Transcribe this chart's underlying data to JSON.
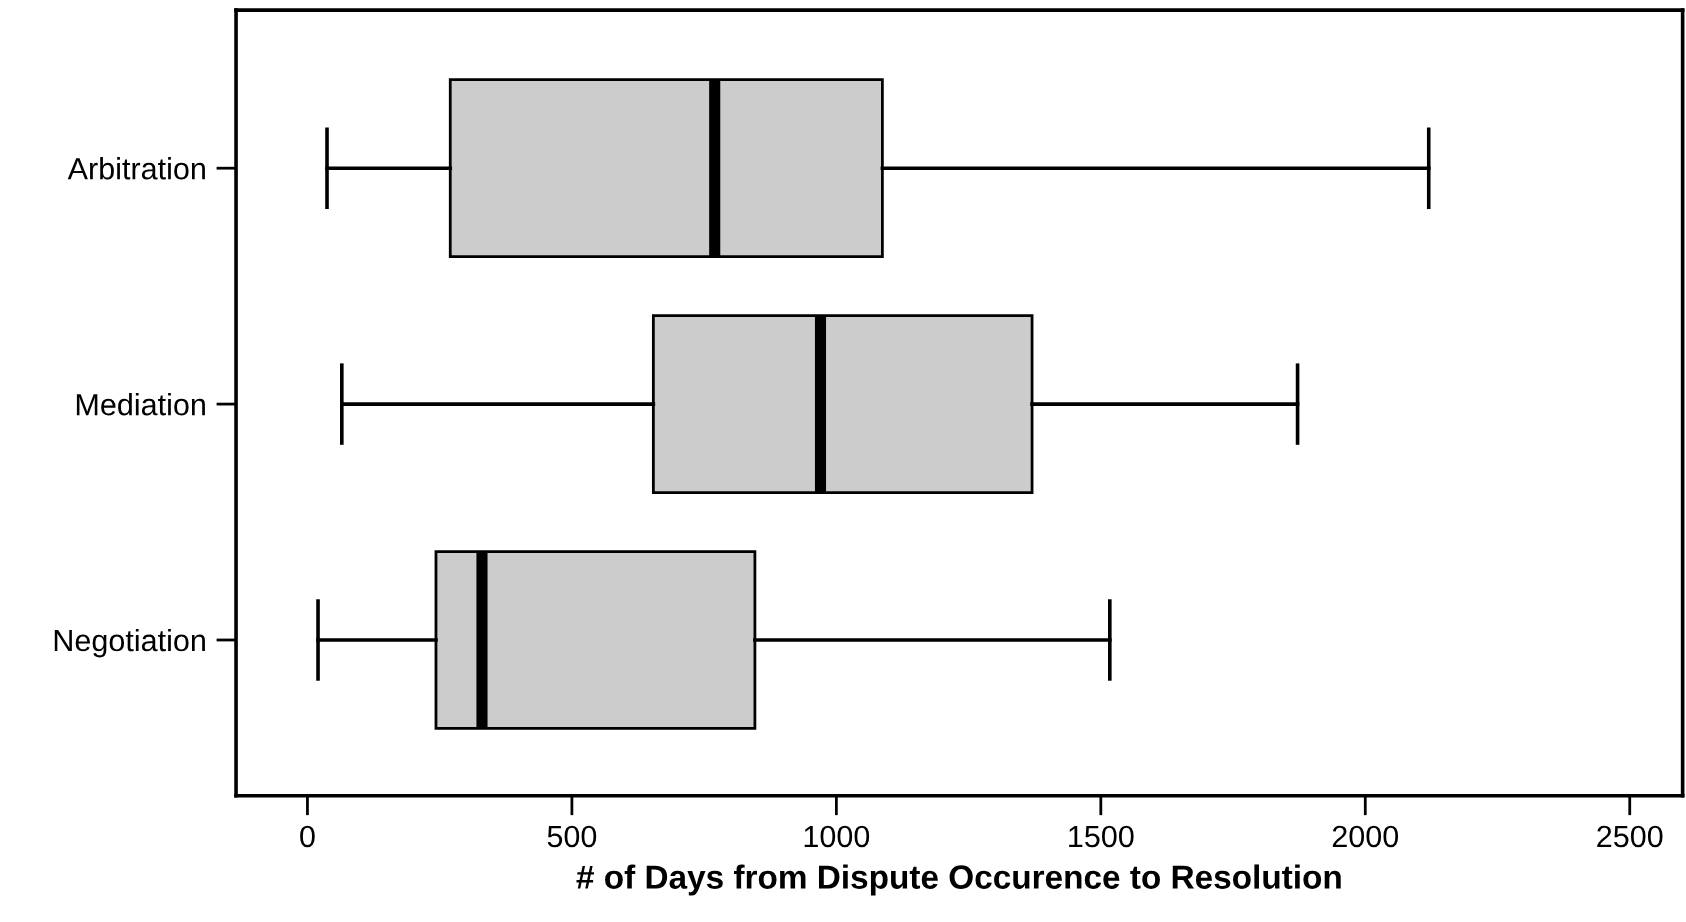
{
  "chart_data": {
    "type": "box",
    "orientation": "horizontal",
    "xlabel": "# of Days from Dispute Occurence to Resolution",
    "categories": [
      "Arbitration",
      "Mediation",
      "Negotiation"
    ],
    "boxes": [
      {
        "low": 37,
        "q1": 270,
        "median": 770,
        "q3": 1087,
        "high": 2120
      },
      {
        "low": 65,
        "q1": 654,
        "median": 970,
        "q3": 1370,
        "high": 1872
      },
      {
        "low": 20,
        "q1": 243,
        "median": 330,
        "q3": 846,
        "high": 1517
      }
    ],
    "color": "#cccccc",
    "xlim": [
      -135,
      2600
    ],
    "xticks": [
      0,
      500,
      1000,
      1500,
      2000,
      2500
    ],
    "grid": false
  }
}
